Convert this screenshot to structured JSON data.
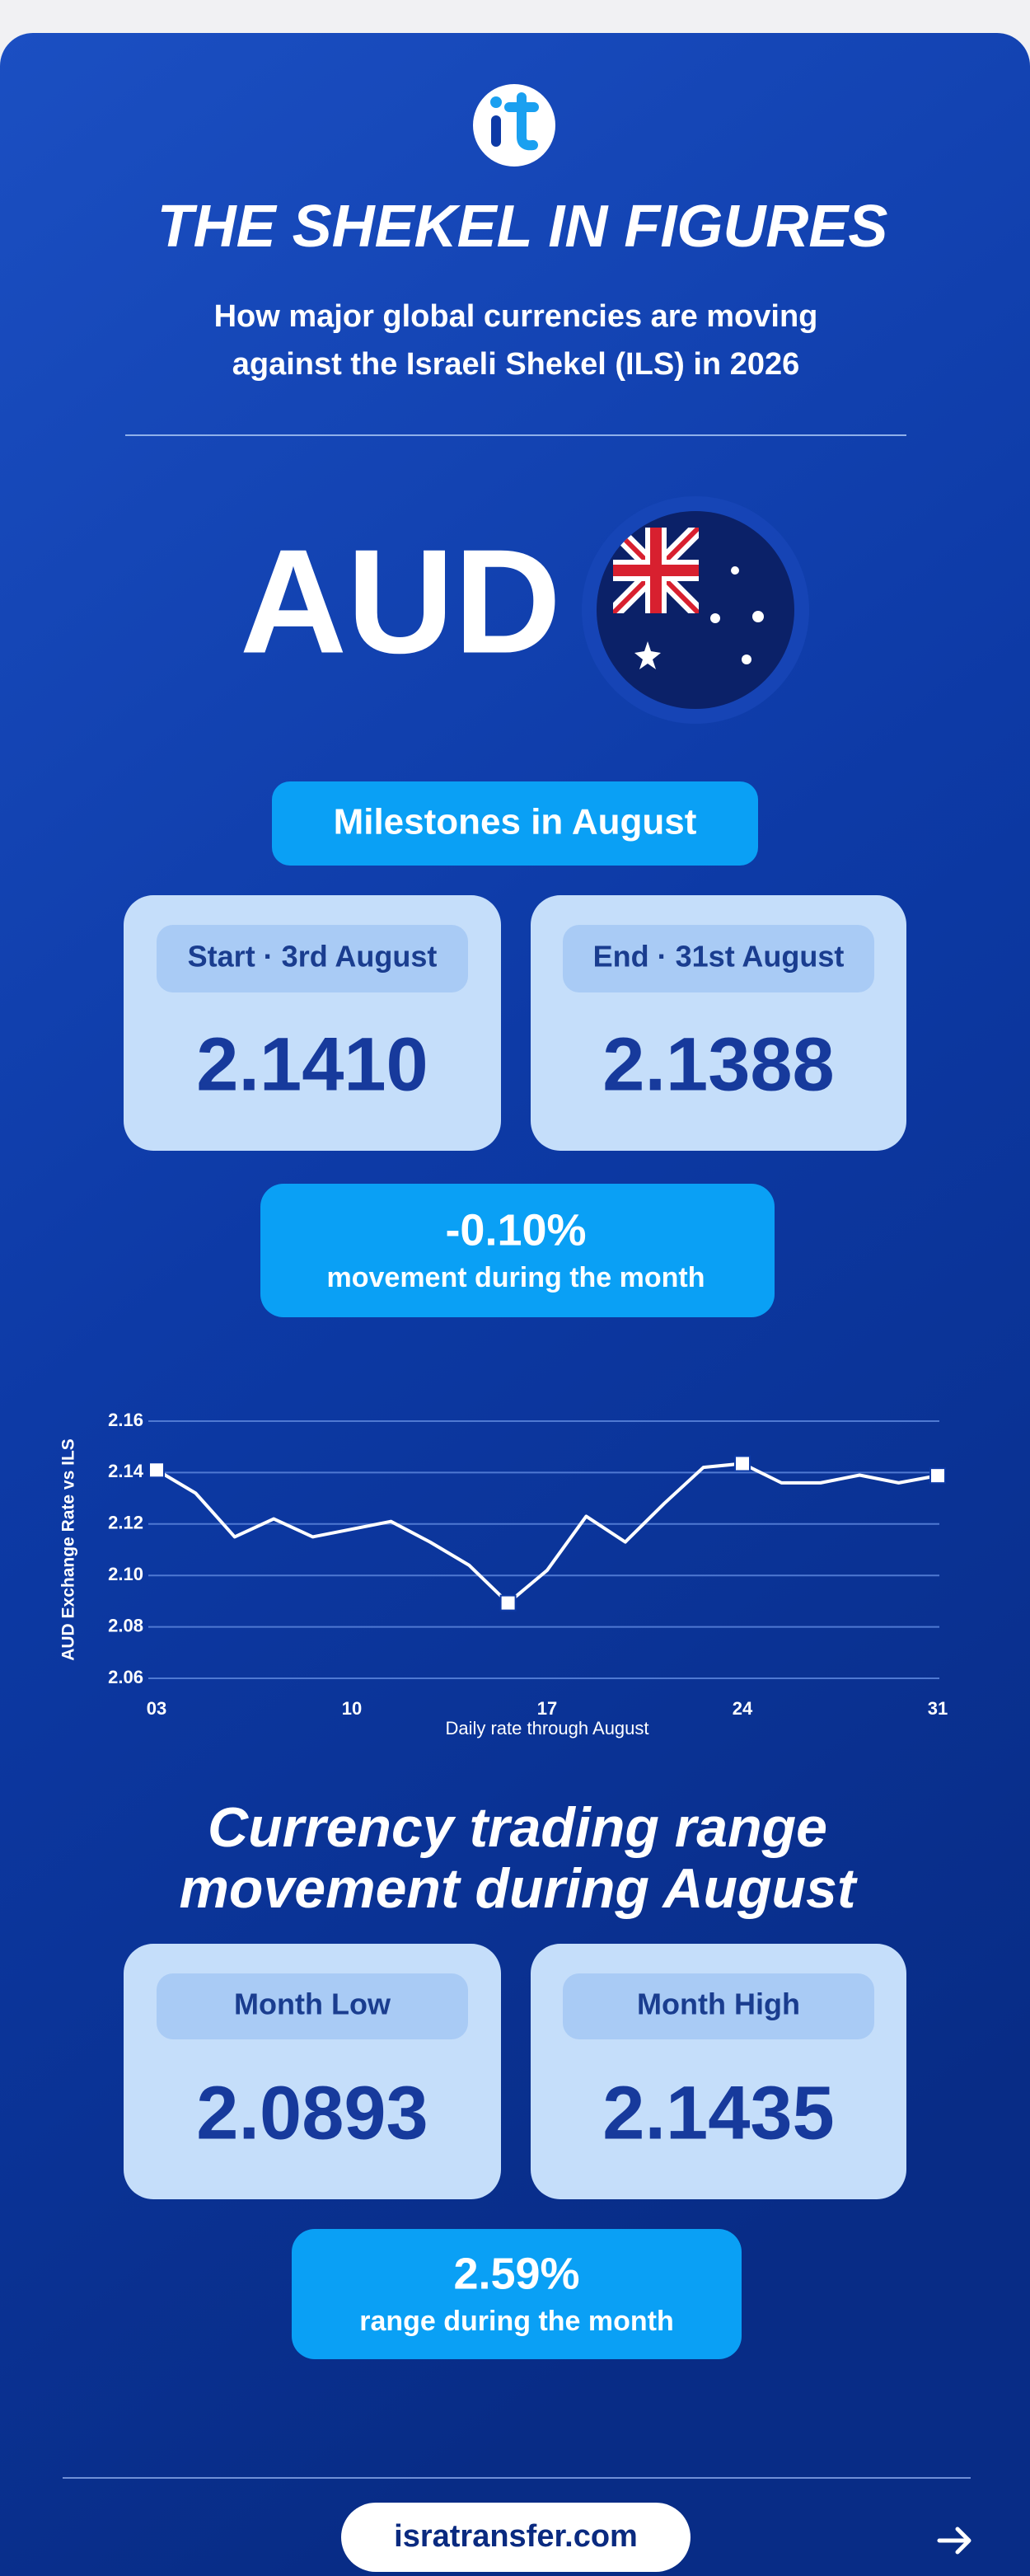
{
  "header": {
    "title": "THE SHEKEL IN FIGURES",
    "subtitle_lines": [
      "How major global currencies are moving",
      "against the Israeli Shekel (ILS) in 2026"
    ]
  },
  "currency": "AUD",
  "milestones": {
    "heading": "Milestones in August",
    "cards": [
      {
        "label": "Start · 3rd August",
        "value": "2.1410"
      },
      {
        "label": "End · 31st August",
        "value": "2.1388"
      }
    ],
    "movement": {
      "value": "-0.10%",
      "caption": "movement during the month"
    }
  },
  "chart_data": {
    "type": "line",
    "x_label": "Daily rate through August",
    "y_label": "AUD Exchange Rate vs ILS",
    "categories": [
      "03",
      null,
      null,
      null,
      null,
      "10",
      null,
      null,
      null,
      null,
      "17",
      null,
      null,
      null,
      null,
      "24",
      null,
      null,
      null,
      null,
      "31"
    ],
    "values": [
      2.141,
      2.132,
      2.115,
      2.122,
      2.115,
      2.118,
      2.121,
      2.113,
      2.104,
      2.0893,
      2.102,
      2.123,
      2.113,
      2.128,
      2.142,
      2.1435,
      2.136,
      2.136,
      2.139,
      2.136,
      2.1388
    ],
    "color": "#ffffff",
    "marker_indices": [
      0,
      9,
      15,
      20
    ],
    "ylim": [
      2.06,
      2.16
    ],
    "yticks": [
      2.06,
      2.08,
      {
        "value": 2.1,
        "label": "2.10"
      },
      2.12,
      2.14,
      2.16
    ],
    "grid": true
  },
  "range": {
    "heading_lines": [
      "Currency trading range",
      "movement during August"
    ],
    "cards": [
      {
        "label": "Month Low",
        "value": "2.0893"
      },
      {
        "label": "Month High",
        "value": "2.1435"
      }
    ],
    "movement": {
      "value": "2.59%",
      "caption": "range during the month"
    }
  },
  "footer": {
    "url": "isratransfer.com"
  }
}
